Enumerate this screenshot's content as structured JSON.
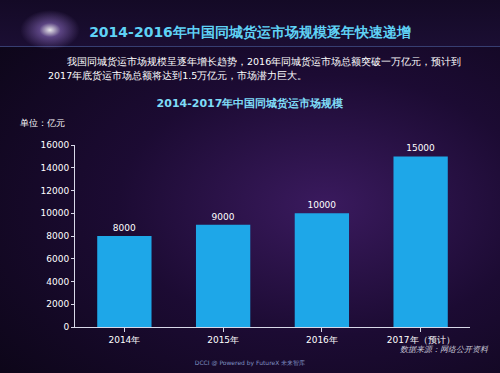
{
  "page": {
    "title": "2014-2016年中国同城货运市场规模逐年快速递增",
    "text": "我国同城货运市场规模呈逐年增长趋势，2016年同城货运市场总额突破一万亿元，预计到2017年底货运市场总额将达到1.5万亿元，市场潜力巨大。",
    "source": "数据来源：网络公开资料",
    "footer": "DCCI @ Powered by FutureX 未来智库"
  },
  "chart_data": {
    "type": "bar",
    "title": "2014-2017年中国同城货运市场规模",
    "y_label": "单位：亿元",
    "categories": [
      "2014年",
      "2015年",
      "2016年",
      "2017年（预计）"
    ],
    "values": [
      8000,
      9000,
      10000,
      15000
    ],
    "color": "#1ea7e8",
    "ylim": [
      0,
      16000
    ],
    "yticks": [
      0,
      2000,
      4000,
      6000,
      8000,
      10000,
      12000,
      14000,
      16000
    ],
    "grid": false,
    "data_labels": true
  }
}
